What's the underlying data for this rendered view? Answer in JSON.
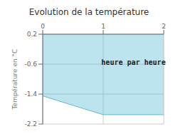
{
  "chart_data": {
    "type": "area",
    "title": "Evolution de la température",
    "y_label": "Température en °C",
    "annotations": [
      {
        "text": "heure par heure",
        "x": 1.5,
        "y": -0.55
      }
    ],
    "x": [
      0,
      1.0,
      2.0
    ],
    "values": [
      -1.45,
      -1.95,
      -1.95
    ],
    "fill_to": 0.2,
    "color": "#5bbcd4",
    "xlim": [
      0,
      2
    ],
    "ylim": [
      -2.2,
      0.2
    ],
    "xticks": [
      0,
      1,
      2
    ],
    "yticks": [
      0.2,
      -0.6,
      -1.4,
      -2.2
    ],
    "grid": true
  }
}
